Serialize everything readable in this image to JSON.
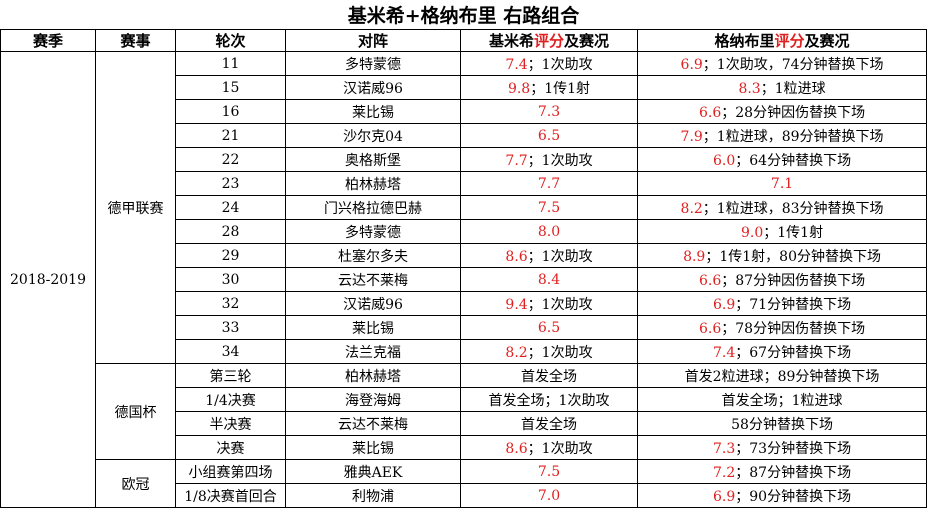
{
  "title": "基米希+格纳布里  右路组合",
  "headers": {
    "season": "赛季",
    "comp": "赛事",
    "round": "轮次",
    "opp": "对阵",
    "kimmich_pre": "基米希",
    "kimmich_red": "评分",
    "kimmich_post": "及赛况",
    "gnabry_pre": "格纳布里",
    "gnabry_red": "评分",
    "gnabry_post": "及赛况"
  },
  "season": "2018-2019",
  "colors": {
    "score": "#e02020"
  },
  "groups": [
    {
      "comp": "德甲联赛",
      "rows": [
        {
          "round": "11",
          "opp": "多特蒙德",
          "k": {
            "score": "7.4",
            "note": "；1次助攻"
          },
          "g": {
            "score": "6.9",
            "note": "；1次助攻，74分钟替换下场"
          }
        },
        {
          "round": "15",
          "opp": "汉诺威96",
          "k": {
            "score": "9.8",
            "note": "；1传1射"
          },
          "g": {
            "score": "8.3",
            "note": "；1粒进球"
          }
        },
        {
          "round": "16",
          "opp": "莱比锡",
          "k": {
            "score": "7.3",
            "note": ""
          },
          "g": {
            "score": "6.6",
            "note": "；28分钟因伤替换下场"
          }
        },
        {
          "round": "21",
          "opp": "沙尔克04",
          "k": {
            "score": "6.5",
            "note": ""
          },
          "g": {
            "score": "7.9",
            "note": "；1粒进球，89分钟替换下场"
          }
        },
        {
          "round": "22",
          "opp": "奥格斯堡",
          "k": {
            "score": "7.7",
            "note": "；1次助攻"
          },
          "g": {
            "score": "6.0",
            "note": "；64分钟替换下场"
          }
        },
        {
          "round": "23",
          "opp": "柏林赫塔",
          "k": {
            "score": "7.7",
            "note": ""
          },
          "g": {
            "score": "7.1",
            "note": ""
          }
        },
        {
          "round": "24",
          "opp": "门兴格拉德巴赫",
          "k": {
            "score": "7.5",
            "note": ""
          },
          "g": {
            "score": "8.2",
            "note": "；1粒进球，83分钟替换下场"
          }
        },
        {
          "round": "28",
          "opp": "多特蒙德",
          "k": {
            "score": "8.0",
            "note": ""
          },
          "g": {
            "score": "9.0",
            "note": "；1传1射"
          }
        },
        {
          "round": "29",
          "opp": "杜塞尔多夫",
          "k": {
            "score": "8.6",
            "note": "；1次助攻"
          },
          "g": {
            "score": "8.9",
            "note": "；1传1射，80分钟替换下场"
          }
        },
        {
          "round": "30",
          "opp": "云达不莱梅",
          "k": {
            "score": "8.4",
            "note": ""
          },
          "g": {
            "score": "6.6",
            "note": "；87分钟因伤替换下场"
          }
        },
        {
          "round": "32",
          "opp": "汉诺威96",
          "k": {
            "score": "9.4",
            "note": "；1次助攻"
          },
          "g": {
            "score": "6.9",
            "note": "；71分钟替换下场"
          }
        },
        {
          "round": "33",
          "opp": "莱比锡",
          "k": {
            "score": "6.5",
            "note": ""
          },
          "g": {
            "score": "6.6",
            "note": "；78分钟因伤替换下场"
          }
        },
        {
          "round": "34",
          "opp": "法兰克福",
          "k": {
            "score": "8.2",
            "note": "；1次助攻"
          },
          "g": {
            "score": "7.4",
            "note": "；67分钟替换下场"
          }
        }
      ]
    },
    {
      "comp": "德国杯",
      "rows": [
        {
          "round": "第三轮",
          "opp": "柏林赫塔",
          "k": {
            "score": "",
            "note": "首发全场"
          },
          "g": {
            "score": "",
            "note": "首发2粒进球；89分钟替换下场"
          }
        },
        {
          "round": "1/4决赛",
          "opp": "海登海姆",
          "k": {
            "score": "",
            "note": "首发全场；1次助攻"
          },
          "g": {
            "score": "",
            "note": "首发全场；1粒进球"
          }
        },
        {
          "round": "半决赛",
          "opp": "云达不莱梅",
          "k": {
            "score": "",
            "note": "首发全场"
          },
          "g": {
            "score": "",
            "note": "58分钟替换下场"
          }
        },
        {
          "round": "决赛",
          "opp": "莱比锡",
          "k": {
            "score": "8.6",
            "note": "；1次助攻"
          },
          "g": {
            "score": "7.3",
            "note": "；73分钟替换下场"
          }
        }
      ]
    },
    {
      "comp": "欧冠",
      "rows": [
        {
          "round": "小组赛第四场",
          "opp": "雅典AEK",
          "k": {
            "score": "7.5",
            "note": ""
          },
          "g": {
            "score": "7.2",
            "note": "；87分钟替换下场"
          }
        },
        {
          "round": "1/8决赛首回合",
          "opp": "利物浦",
          "k": {
            "score": "7.0",
            "note": ""
          },
          "g": {
            "score": "6.9",
            "note": "；90分钟替换下场"
          }
        }
      ]
    }
  ]
}
